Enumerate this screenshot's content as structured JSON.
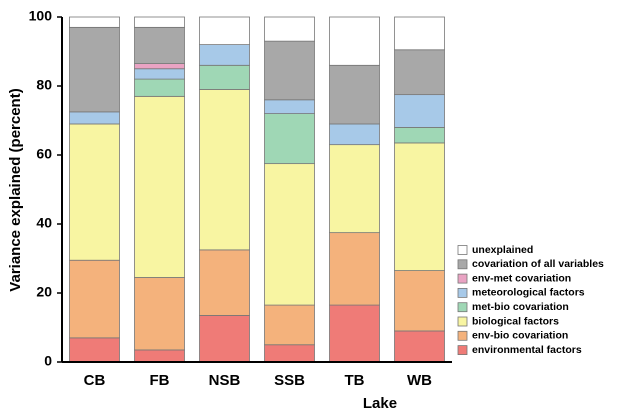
{
  "chart_data": {
    "type": "stacked-bar",
    "x_label": "Lake",
    "y_label": "Variance explained (percent)",
    "categories": [
      "CB",
      "FB",
      "NSB",
      "SSB",
      "TB",
      "WB"
    ],
    "series": [
      {
        "name": "environmental factors",
        "color": "#ef7b77",
        "values": [
          7,
          3.5,
          13.5,
          5,
          16.5,
          9
        ]
      },
      {
        "name": "env-bio covariation",
        "color": "#f4b27c",
        "values": [
          22.5,
          21,
          19,
          11.5,
          21,
          17.5
        ]
      },
      {
        "name": "biological factors",
        "color": "#f8f5a2",
        "values": [
          39.5,
          52.5,
          46.5,
          41,
          25.5,
          37
        ]
      },
      {
        "name": "met-bio covariation",
        "color": "#9fd7b5",
        "values": [
          0,
          5,
          7,
          14.5,
          0,
          4.5
        ]
      },
      {
        "name": "meteorological factors",
        "color": "#a7c9e8",
        "values": [
          3.5,
          3,
          6,
          4,
          6,
          9.5
        ]
      },
      {
        "name": "env-met covariation",
        "color": "#e9a3c3",
        "values": [
          0,
          1.5,
          0,
          0,
          0,
          0
        ]
      },
      {
        "name": "covariation of all variables",
        "color": "#a8a8a8",
        "values": [
          24.5,
          10.5,
          0,
          17,
          17,
          13
        ]
      },
      {
        "name": "unexplained",
        "color": "#ffffff",
        "values": [
          3,
          3,
          8,
          7,
          14,
          9.5
        ]
      }
    ],
    "ylim": [
      0,
      100
    ],
    "yticks": [
      0,
      20,
      40,
      60,
      80,
      100
    ]
  }
}
